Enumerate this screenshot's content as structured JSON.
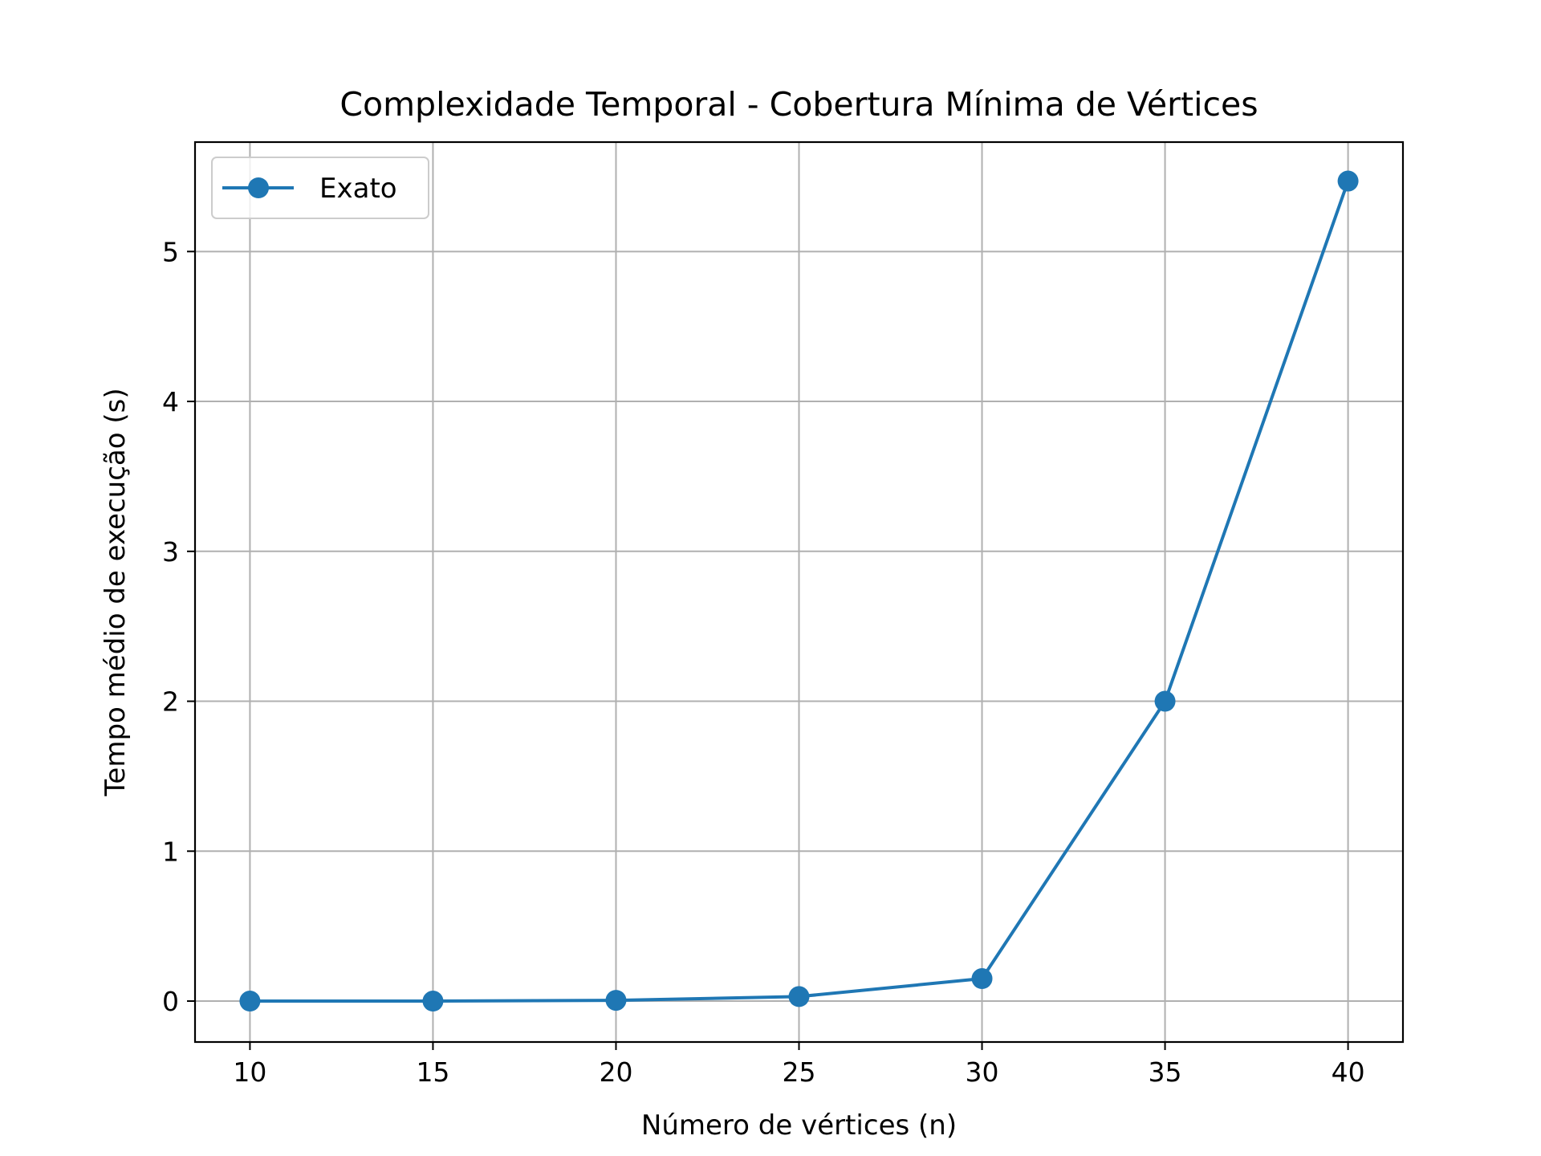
{
  "chart_data": {
    "type": "line",
    "title": "Complexidade Temporal - Cobertura Mínima de Vértices",
    "xlabel": "Número de vértices (n)",
    "ylabel": "Tempo médio de execução (s)",
    "x": [
      10,
      15,
      20,
      25,
      30,
      35,
      40
    ],
    "xlim": [
      8.5,
      41.5
    ],
    "ylim": [
      -0.273,
      5.73
    ],
    "xticks": [
      10,
      15,
      20,
      25,
      30,
      35,
      40
    ],
    "yticks": [
      0,
      1,
      2,
      3,
      4,
      5
    ],
    "grid": true,
    "legend_position": "top-left",
    "series": [
      {
        "name": "Exato",
        "color": "#1f77b4",
        "marker": "circle",
        "values": [
          0.0,
          0.0,
          0.005,
          0.03,
          0.15,
          2.0,
          5.47
        ]
      }
    ]
  }
}
